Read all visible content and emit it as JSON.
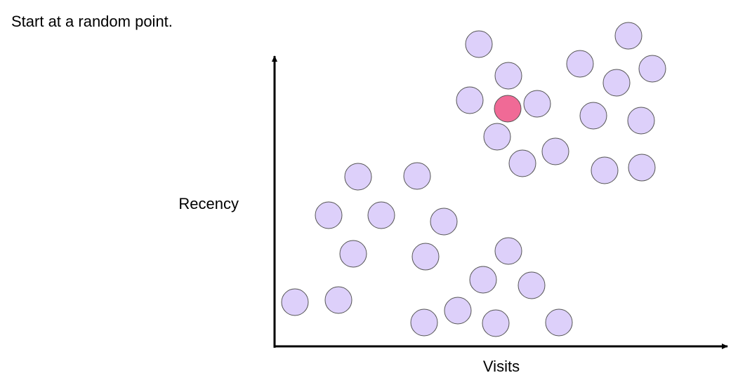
{
  "title": "Start at a random point.",
  "y_axis_label": "Recency",
  "x_axis_label": "Visits"
}
